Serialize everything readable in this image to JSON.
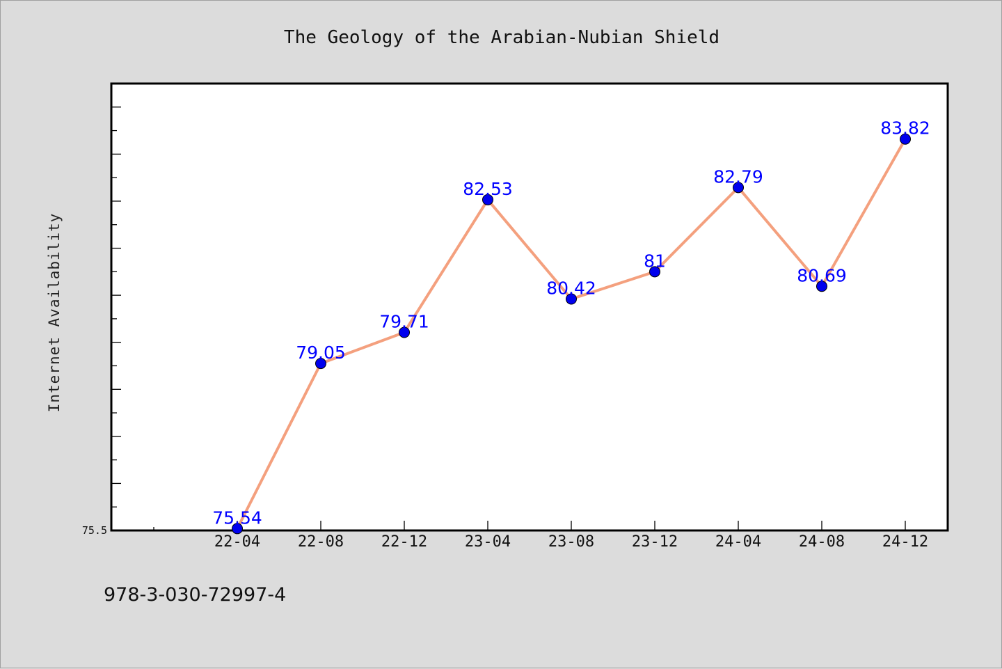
{
  "chart_data": {
    "type": "line",
    "title": "The Geology of the Arabian-Nubian Shield",
    "xlabel": "",
    "ylabel": "Internet Availability",
    "categories": [
      "22-04",
      "22-08",
      "22-12",
      "23-04",
      "23-08",
      "23-12",
      "24-04",
      "24-08",
      "24-12"
    ],
    "series": [
      {
        "values": [
          75.54,
          79.05,
          79.71,
          82.53,
          80.42,
          81,
          82.79,
          80.69,
          83.82
        ]
      }
    ],
    "data_labels": [
      "75.54",
      "79.05",
      "79.71",
      "82.53",
      "80.42",
      "81",
      "82.79",
      "80.69",
      "83.82"
    ],
    "ylim": [
      75.5,
      85
    ],
    "ytick_labels": [
      "75.5"
    ],
    "grid": false,
    "legend": "none",
    "line_color": "#f4a07e",
    "marker_color": "#0000ee",
    "label_color": "#0000ff"
  },
  "footnote": "978-3-030-72997-4"
}
